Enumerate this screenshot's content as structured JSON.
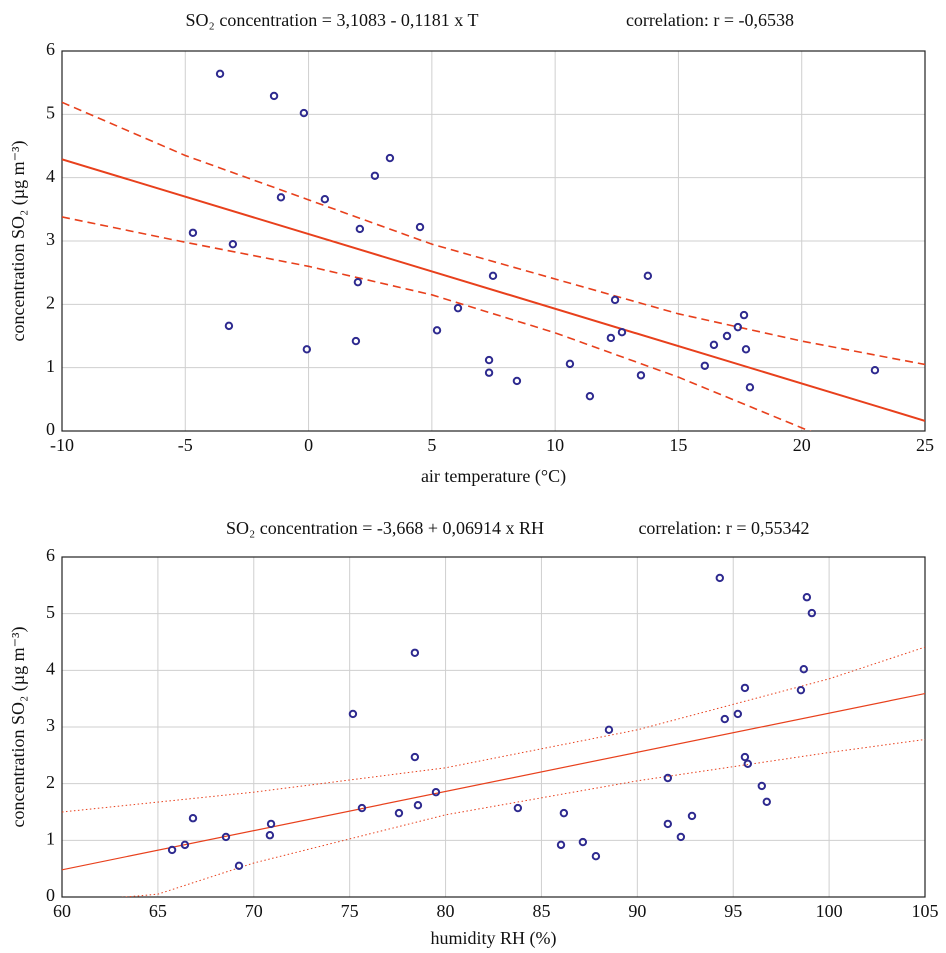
{
  "chart_data": [
    {
      "type": "scatter",
      "title": "SO₂ concentration = 3,1083 - 0,1181 x T",
      "subtitle": "correlation: r = -0,6538",
      "x_label": "air temperature (°C)",
      "y_label": "concentration SO₂ (µg m⁻³)",
      "xlim": [
        -10,
        25
      ],
      "ylim": [
        0,
        6
      ],
      "xticks": [
        -10,
        -5,
        0,
        5,
        10,
        15,
        20,
        25
      ],
      "yticks": [
        0,
        1,
        2,
        3,
        4,
        5,
        6
      ],
      "grid": true,
      "series": [
        {
          "mark": "circle",
          "color": "#2e2a8f",
          "x": [
            -3.59,
            -1.4,
            -0.19,
            -4.69,
            -3.07,
            -3.23,
            -1.12,
            -0.07,
            0.66,
            2.08,
            2.0,
            1.92,
            2.69,
            3.3,
            4.52,
            5.21,
            6.06,
            7.48,
            7.32,
            7.32,
            8.45,
            10.6,
            11.41,
            12.43,
            12.26,
            12.71,
            13.48,
            13.76,
            16.07,
            16.44,
            16.97,
            17.41,
            17.66,
            17.74,
            17.9,
            22.97
          ],
          "values": [
            5.64,
            5.29,
            5.02,
            3.13,
            2.95,
            1.66,
            3.69,
            1.29,
            3.66,
            3.19,
            2.35,
            1.42,
            4.03,
            4.31,
            3.22,
            1.59,
            1.94,
            2.45,
            1.12,
            0.92,
            0.79,
            1.06,
            0.55,
            2.07,
            1.47,
            1.56,
            0.88,
            2.45,
            1.03,
            1.36,
            1.5,
            1.64,
            1.83,
            1.29,
            0.69,
            0.96
          ]
        },
        {
          "mark": "line",
          "color": "#e8401c",
          "style": "solid",
          "x": [
            -10,
            25
          ],
          "values": [
            4.29,
            0.16
          ]
        },
        {
          "mark": "line",
          "color": "#e8401c",
          "style": "dashed",
          "x": [
            -10,
            -5,
            0,
            5,
            10,
            15,
            20,
            25
          ],
          "values": [
            5.19,
            4.35,
            3.65,
            2.95,
            2.4,
            1.85,
            1.42,
            1.05
          ]
        },
        {
          "mark": "line",
          "color": "#e8401c",
          "style": "dashed",
          "x": [
            -10,
            -5,
            0,
            5,
            10,
            15,
            20,
            25
          ],
          "values": [
            3.38,
            2.98,
            2.6,
            2.15,
            1.55,
            0.85,
            0.05,
            -0.75
          ]
        }
      ]
    },
    {
      "type": "scatter",
      "title": "SO₂ concentration = -3,668 + 0,06914 x RH",
      "subtitle": "correlation: r = 0,55342",
      "x_label": "humidity RH  (%)",
      "y_label": "concentration SO₂ (µg m⁻³)",
      "xlim": [
        60,
        105
      ],
      "ylim": [
        0,
        6
      ],
      "xticks": [
        60,
        65,
        70,
        75,
        80,
        85,
        90,
        95,
        100,
        105
      ],
      "yticks": [
        0,
        1,
        2,
        3,
        4,
        5,
        6
      ],
      "grid": true,
      "series": [
        {
          "mark": "circle",
          "color": "#2e2a8f",
          "x": [
            65.74,
            66.41,
            66.83,
            68.55,
            69.23,
            70.84,
            70.9,
            75.17,
            75.64,
            77.57,
            78.4,
            78.4,
            78.56,
            79.5,
            83.77,
            86.02,
            86.17,
            87.16,
            87.84,
            88.52,
            91.59,
            91.59,
            92.27,
            92.85,
            94.3,
            94.56,
            95.24,
            95.61,
            95.61,
            95.76,
            96.49,
            96.75,
            98.53,
            98.68,
            98.84,
            99.1
          ],
          "values": [
            0.83,
            0.92,
            1.39,
            1.06,
            0.55,
            1.09,
            1.29,
            3.23,
            1.57,
            1.48,
            4.31,
            2.47,
            1.62,
            1.85,
            1.57,
            0.92,
            1.48,
            0.97,
            0.72,
            2.95,
            2.1,
            1.29,
            1.06,
            1.43,
            5.63,
            3.14,
            3.23,
            3.69,
            2.47,
            2.35,
            1.96,
            1.68,
            3.65,
            4.02,
            5.29,
            5.01
          ]
        },
        {
          "mark": "line",
          "color": "#e8401c",
          "style": "solid",
          "x": [
            60,
            105
          ],
          "values": [
            0.48,
            3.59
          ]
        },
        {
          "mark": "line",
          "color": "#e8401c",
          "style": "dotted",
          "x": [
            60,
            70,
            80,
            90,
            100,
            105
          ],
          "values": [
            1.5,
            1.85,
            2.28,
            2.95,
            3.85,
            4.41
          ]
        },
        {
          "mark": "line",
          "color": "#e8401c",
          "style": "dotted",
          "x": [
            60,
            65,
            70,
            80,
            90,
            100,
            105
          ],
          "values": [
            -0.1,
            0.05,
            0.6,
            1.45,
            2.05,
            2.55,
            2.78
          ]
        }
      ]
    }
  ]
}
